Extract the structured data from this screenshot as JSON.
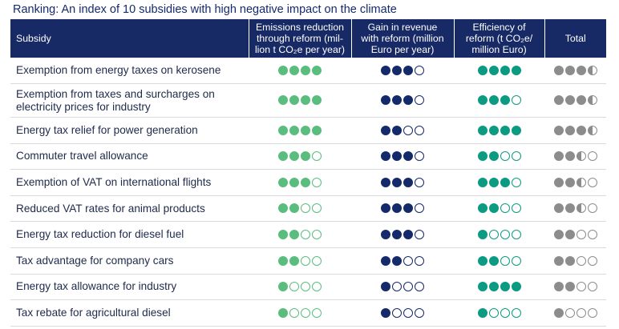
{
  "title": "Ranking: An index of 10 subsidies with high negative impact on the climate",
  "headers": {
    "subsidy": "Subsidy",
    "emissions": [
      "Emissions reduction",
      "through reform (mil-",
      "lion t CO₂e per year)"
    ],
    "revenue": [
      "Gain in revenue",
      "with reform (million",
      "Euro per year)"
    ],
    "efficiency": [
      "Efficiency of",
      "reform (t CO₂e/",
      "million Euro)"
    ],
    "total": "Total"
  },
  "colors": {
    "emissions": "#5bbd7d",
    "revenue": "#142a6b",
    "efficiency": "#0b9a82",
    "total": "#8c8c8c"
  },
  "rating_scale_max": 4,
  "rows": [
    {
      "name": [
        "Exemption from energy taxes on kerosene"
      ],
      "emissions": 4,
      "revenue": 3,
      "efficiency": 4,
      "total": 3.5
    },
    {
      "name": [
        "Exemption from taxes and surcharges on",
        "electricity prices for industry"
      ],
      "emissions": 4,
      "revenue": 3,
      "efficiency": 3,
      "total": 3.5
    },
    {
      "name": [
        "Energy tax relief for power generation"
      ],
      "emissions": 4,
      "revenue": 2,
      "efficiency": 4,
      "total": 3.5
    },
    {
      "name": [
        "Commuter travel allowance"
      ],
      "emissions": 3,
      "revenue": 3,
      "efficiency": 2,
      "total": 2.5
    },
    {
      "name": [
        "Exemption of VAT on international flights"
      ],
      "emissions": 3,
      "revenue": 3,
      "efficiency": 3,
      "total": 2.5
    },
    {
      "name": [
        "Reduced VAT rates for animal products"
      ],
      "emissions": 2,
      "revenue": 3,
      "efficiency": 2,
      "total": 2.5
    },
    {
      "name": [
        "Energy tax reduction for diesel fuel"
      ],
      "emissions": 2,
      "revenue": 3,
      "efficiency": 1,
      "total": 2
    },
    {
      "name": [
        "Tax advantage for company cars"
      ],
      "emissions": 2,
      "revenue": 2,
      "efficiency": 2,
      "total": 2
    },
    {
      "name": [
        "Energy tax allowance for industry"
      ],
      "emissions": 1,
      "revenue": 1,
      "efficiency": 4,
      "total": 2
    },
    {
      "name": [
        "Tax rebate for agricultural diesel"
      ],
      "emissions": 1,
      "revenue": 1,
      "efficiency": 1,
      "total": 1
    }
  ]
}
